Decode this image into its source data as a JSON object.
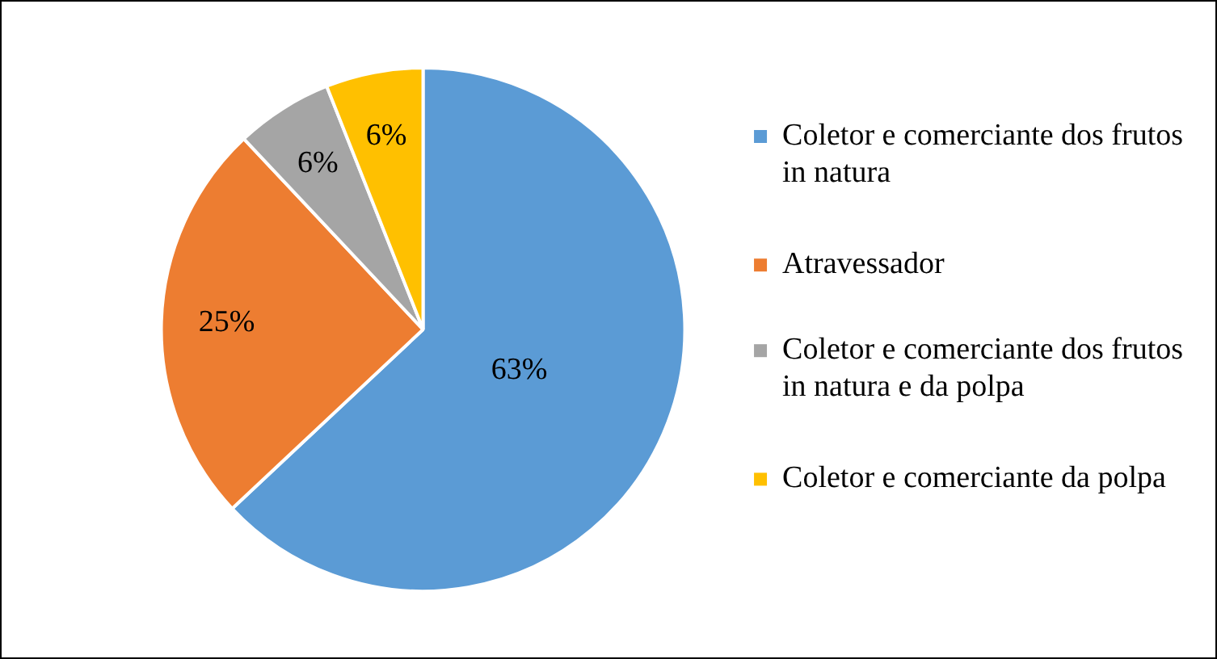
{
  "chart_data": {
    "type": "pie",
    "categories": [
      "Coletor e comerciante dos frutos in natura",
      "Atravessador",
      "Coletor e comerciante dos frutos in natura e da polpa",
      "Coletor e comerciante da polpa"
    ],
    "values": [
      63,
      25,
      6,
      6
    ],
    "colors": [
      "#5b9bd5",
      "#ed7d31",
      "#a5a5a5",
      "#ffc000"
    ],
    "value_labels": [
      "63%",
      "25%",
      "6%",
      "6%"
    ],
    "legend": "right"
  }
}
